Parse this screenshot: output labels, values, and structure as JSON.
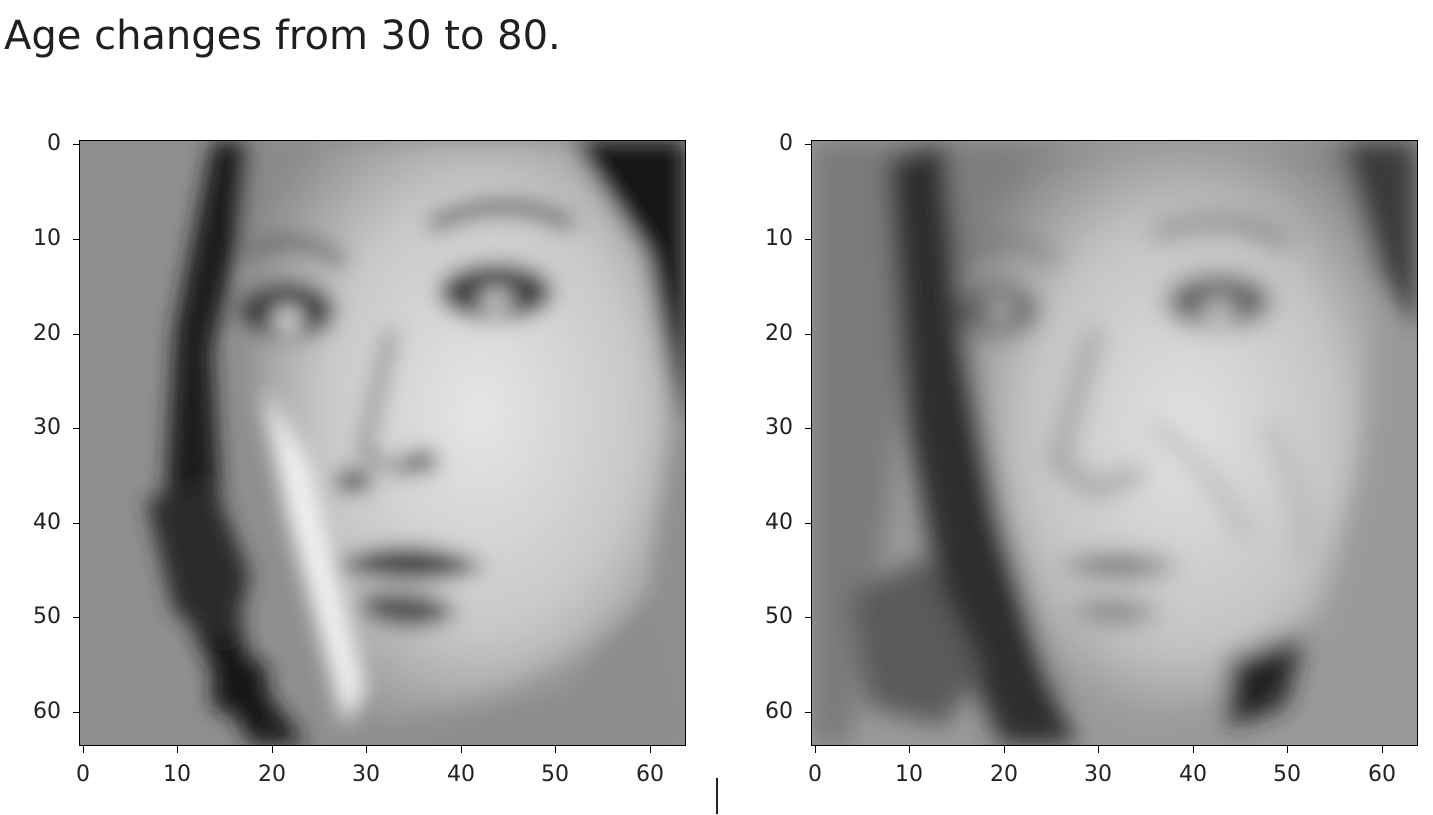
{
  "caption": "Age changes from 30 to 80.",
  "images": [
    {
      "name": "face-before",
      "description": "grayscale face, age 30",
      "y_ticks": [
        "0",
        "10",
        "20",
        "30",
        "40",
        "50",
        "60"
      ],
      "x_ticks": [
        "0",
        "10",
        "20",
        "30",
        "40",
        "50",
        "60"
      ]
    },
    {
      "name": "face-after",
      "description": "grayscale face, age 80",
      "y_ticks": [
        "0",
        "10",
        "20",
        "30",
        "40",
        "50",
        "60"
      ],
      "x_ticks": [
        "0",
        "10",
        "20",
        "30",
        "40",
        "50",
        "60"
      ]
    }
  ],
  "axis": {
    "xlim": [
      -0.5,
      63.5
    ],
    "ylim": [
      63.5,
      -0.5
    ]
  },
  "colors": {
    "text": "#1f1f1f",
    "axis": "#000000",
    "background": "#ffffff"
  }
}
